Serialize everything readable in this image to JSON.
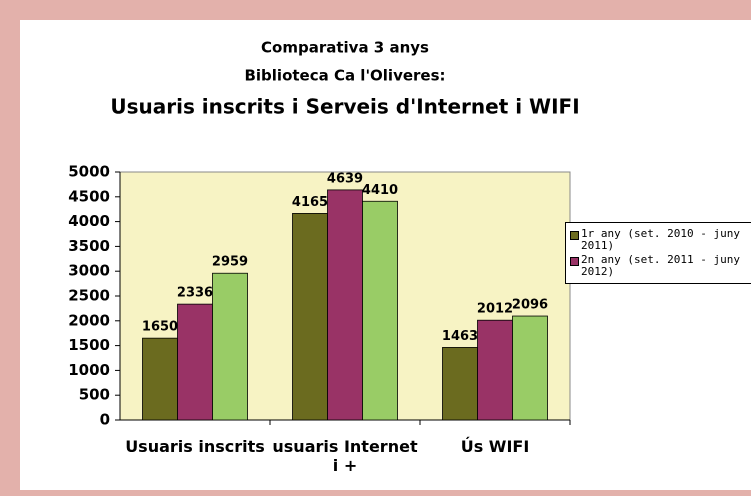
{
  "chart_data": {
    "type": "bar",
    "title": "Comparativa 3 anys",
    "subtitle": "Biblioteca Ca l'Oliveres:",
    "heading": "Usuaris inscrits i Serveis d'Internet i WIFI",
    "categories": [
      "Usuaris inscrits",
      "usuaris Internet i +",
      "Ús WIFI"
    ],
    "series": [
      {
        "name": "1r any (set. 2010 - juny 2011)",
        "color": "#6b6b1f",
        "values": [
          1650,
          4165,
          1463
        ]
      },
      {
        "name": "2n any (set. 2011 - juny 2012)",
        "color": "#993366",
        "values": [
          2336,
          4639,
          2012
        ]
      },
      {
        "color": "#99cc66",
        "values": [
          2959,
          4410,
          2096
        ]
      }
    ],
    "ylim": [
      0,
      5000
    ],
    "yticks": [
      0,
      500,
      1000,
      1500,
      2000,
      2500,
      3000,
      3500,
      4000,
      4500,
      5000
    ],
    "plot_background": "#f7f3c4"
  }
}
